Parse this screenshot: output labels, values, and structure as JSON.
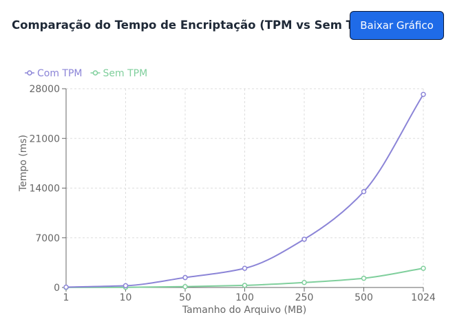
{
  "header": {
    "title": "Comparação do Tempo de Encriptação (TPM vs Sem TPM)",
    "download_label": "Baixar Gráfico"
  },
  "chart_data": {
    "type": "line",
    "categories": [
      "1",
      "10",
      "50",
      "100",
      "250",
      "500",
      "1024"
    ],
    "series": [
      {
        "name": "Com TPM",
        "color": "#8b84d7",
        "values": [
          50,
          250,
          1400,
          2700,
          6800,
          13500,
          27200
        ]
      },
      {
        "name": "Sem TPM",
        "color": "#7fcf9c",
        "values": [
          10,
          30,
          120,
          300,
          700,
          1300,
          2700
        ]
      }
    ],
    "xlabel": "Tamanho do Arquivo (MB)",
    "ylabel": "Tempo (ms)",
    "ylim": [
      0,
      28000
    ],
    "yticks": [
      "0",
      "7000",
      "14000",
      "21000",
      "28000"
    ],
    "grid": true,
    "legend_position": "top-left"
  }
}
